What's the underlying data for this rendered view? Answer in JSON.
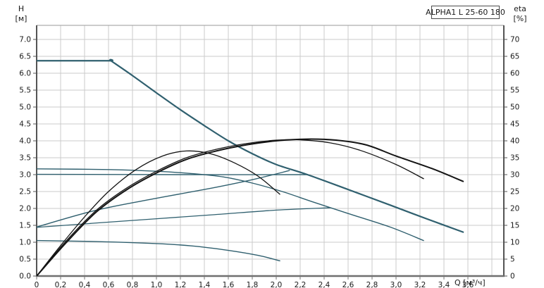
{
  "title_box": "ALPHA1 L 25-60 180",
  "axes": {
    "left": {
      "label_line1": "H",
      "label_line2": "[м]",
      "tick_labels": [
        "7.0",
        "6.5",
        "6.0",
        "5.5",
        "5.0",
        "4.5",
        "4.0",
        "3.5",
        "3.0",
        "2.5",
        "2.0",
        "1.5",
        "1.0",
        "0.5",
        "0.0"
      ],
      "tick_values": [
        7.0,
        6.5,
        6.0,
        5.5,
        5.0,
        4.5,
        4.0,
        3.5,
        3.0,
        2.5,
        2.0,
        1.5,
        1.0,
        0.5,
        0.0
      ]
    },
    "right": {
      "label_line1": "eta",
      "label_line2": "[%]",
      "tick_labels": [
        "70",
        "65",
        "60",
        "55",
        "50",
        "45",
        "40",
        "35",
        "30",
        "25",
        "20",
        "15",
        "10",
        "5",
        "0"
      ],
      "tick_values": [
        70,
        65,
        60,
        55,
        50,
        45,
        40,
        35,
        30,
        25,
        20,
        15,
        10,
        5,
        0
      ]
    },
    "x": {
      "label": "Q [м³/ч]",
      "tick_labels": [
        "0",
        "0,2",
        "0,4",
        "0,6",
        "0,8",
        "1,0",
        "1,2",
        "1,4",
        "1,6",
        "1,8",
        "2,0",
        "2,2",
        "2,4",
        "2,6",
        "2,8",
        "3,0",
        "3,2",
        "3,4",
        "3,6"
      ],
      "tick_values": [
        0,
        0.2,
        0.4,
        0.6,
        0.8,
        1.0,
        1.2,
        1.4,
        1.6,
        1.8,
        2.0,
        2.2,
        2.4,
        2.6,
        2.8,
        3.0,
        3.2,
        3.4,
        3.6
      ]
    }
  },
  "chart_data": {
    "type": "line",
    "title": "ALPHA1 L 25-60 180",
    "xlabel": "Q [м³/ч]",
    "ylabel_left": "H [м]",
    "ylabel_right": "eta [%]",
    "xlim": [
      0,
      3.9
    ],
    "ylim_left": [
      0,
      7.42
    ],
    "ylim_right": [
      0,
      74.2
    ],
    "grid": {
      "x_step": 0.2,
      "y_step_left": 0.5,
      "color": "#cbcbcb"
    },
    "legend_position": "none",
    "colors": {
      "pump_curves": "#30606f",
      "eta_curves": "#141414",
      "grid": "#cbcbcb",
      "axis": "#2a2a2a"
    },
    "series": [
      {
        "name": "pump-curve-max",
        "axis": "left",
        "color": "#30606f",
        "width": 2.2,
        "points": [
          [
            0,
            6.37
          ],
          [
            0.35,
            6.37
          ],
          [
            0.62,
            6.37
          ],
          [
            0.62,
            6.37
          ],
          [
            0.8,
            5.93
          ],
          [
            1.0,
            5.42
          ],
          [
            1.2,
            4.92
          ],
          [
            1.4,
            4.45
          ],
          [
            1.6,
            4.0
          ],
          [
            1.8,
            3.62
          ],
          [
            2.0,
            3.3
          ],
          [
            2.26,
            3.0
          ],
          [
            2.6,
            2.56
          ],
          [
            2.95,
            2.1
          ],
          [
            3.25,
            1.7
          ],
          [
            3.56,
            1.3
          ]
        ]
      },
      {
        "name": "pump-curve-mid",
        "axis": "left",
        "color": "#30606f",
        "width": 1.4,
        "points": [
          [
            0,
            3.17
          ],
          [
            0.6,
            3.15
          ],
          [
            1.0,
            3.1
          ],
          [
            1.3,
            3.03
          ],
          [
            1.56,
            2.93
          ],
          [
            1.8,
            2.75
          ],
          [
            2.05,
            2.5
          ],
          [
            2.3,
            2.2
          ],
          [
            2.6,
            1.85
          ],
          [
            2.95,
            1.45
          ],
          [
            3.23,
            1.05
          ]
        ]
      },
      {
        "name": "constant-pressure-curve",
        "axis": "left",
        "color": "#30606f",
        "width": 1.4,
        "points": [
          [
            0,
            3.01
          ],
          [
            1.2,
            3.0
          ],
          [
            2.26,
            3.0
          ]
        ]
      },
      {
        "name": "proportional-pressure-curve-upper",
        "axis": "left",
        "color": "#30606f",
        "width": 1.4,
        "points": [
          [
            0,
            1.45
          ],
          [
            0.5,
            1.95
          ],
          [
            1.0,
            2.3
          ],
          [
            1.46,
            2.6
          ],
          [
            1.8,
            2.85
          ],
          [
            2.11,
            3.12
          ]
        ]
      },
      {
        "name": "proportional-pressure-curve-lower",
        "axis": "left",
        "color": "#30606f",
        "width": 1.3,
        "points": [
          [
            0,
            1.44
          ],
          [
            0.7,
            1.62
          ],
          [
            1.46,
            1.81
          ],
          [
            2.0,
            1.95
          ],
          [
            2.45,
            2.02
          ]
        ]
      },
      {
        "name": "pump-curve-min",
        "axis": "left",
        "color": "#30606f",
        "width": 1.4,
        "points": [
          [
            0,
            1.05
          ],
          [
            0.5,
            1.02
          ],
          [
            1.0,
            0.96
          ],
          [
            1.3,
            0.89
          ],
          [
            1.6,
            0.76
          ],
          [
            1.85,
            0.61
          ],
          [
            2.03,
            0.45
          ]
        ]
      },
      {
        "name": "eta-curve-max",
        "axis": "right",
        "color": "#141414",
        "width": 2.0,
        "points": [
          [
            0,
            0
          ],
          [
            0.25,
            10
          ],
          [
            0.5,
            19
          ],
          [
            0.75,
            25.5
          ],
          [
            1.0,
            30.5
          ],
          [
            1.25,
            34.5
          ],
          [
            1.5,
            37
          ],
          [
            1.75,
            38.8
          ],
          [
            2.0,
            40
          ],
          [
            2.25,
            40.5
          ],
          [
            2.5,
            40.2
          ],
          [
            2.75,
            38.8
          ],
          [
            3.0,
            35.5
          ],
          [
            3.3,
            31.8
          ],
          [
            3.56,
            28
          ]
        ]
      },
      {
        "name": "eta-curve-mid",
        "axis": "right",
        "color": "#141414",
        "width": 1.3,
        "points": [
          [
            0,
            0
          ],
          [
            0.25,
            10.5
          ],
          [
            0.5,
            19.5
          ],
          [
            0.75,
            26
          ],
          [
            1.0,
            31
          ],
          [
            1.25,
            35
          ],
          [
            1.5,
            37.5
          ],
          [
            1.75,
            39.2
          ],
          [
            2.0,
            40.2
          ],
          [
            2.2,
            40.3
          ],
          [
            2.45,
            39.4
          ],
          [
            2.7,
            37.2
          ],
          [
            3.0,
            33
          ],
          [
            3.23,
            28.8
          ]
        ]
      },
      {
        "name": "eta-curve-min",
        "axis": "right",
        "color": "#141414",
        "width": 1.3,
        "points": [
          [
            0,
            0
          ],
          [
            0.2,
            9
          ],
          [
            0.4,
            17.5
          ],
          [
            0.6,
            25
          ],
          [
            0.83,
            31.5
          ],
          [
            1.05,
            35.5
          ],
          [
            1.25,
            37
          ],
          [
            1.45,
            36.2
          ],
          [
            1.65,
            33.5
          ],
          [
            1.85,
            29.5
          ],
          [
            2.03,
            24.2
          ]
        ]
      }
    ]
  }
}
